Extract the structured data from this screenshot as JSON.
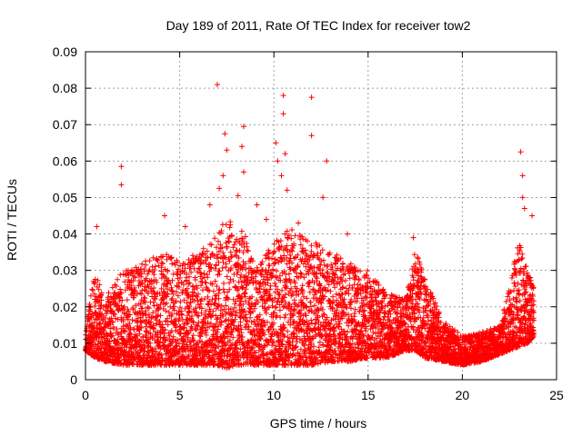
{
  "chart_data": {
    "type": "scatter",
    "title": "Day 189 of 2011, Rate Of TEC Index for receiver tow2",
    "xlabel": "GPS time / hours",
    "ylabel": "ROTI / TECUs",
    "xlim": [
      0,
      25
    ],
    "ylim": [
      0,
      0.09
    ],
    "x_ticks": [
      0,
      5,
      10,
      15,
      20,
      25
    ],
    "y_ticks": [
      0,
      0.01,
      0.02,
      0.03,
      0.04,
      0.05,
      0.06,
      0.07,
      0.08,
      0.09
    ],
    "grid": true,
    "marker": "plus",
    "series_color": "#ff0000",
    "envelope": {
      "x": [
        0,
        0.5,
        1,
        2,
        3,
        4,
        5,
        6,
        7,
        7.5,
        8,
        8.5,
        9,
        10,
        10.5,
        11,
        12,
        13,
        14,
        15,
        16,
        17,
        17.5,
        18,
        19,
        20,
        21,
        22,
        22.5,
        23,
        23.5,
        23.8
      ],
      "low": [
        0.008,
        0.006,
        0.005,
        0.004,
        0.004,
        0.004,
        0.004,
        0.004,
        0.004,
        0.003,
        0.004,
        0.004,
        0.004,
        0.004,
        0.004,
        0.004,
        0.004,
        0.005,
        0.005,
        0.006,
        0.006,
        0.008,
        0.008,
        0.006,
        0.005,
        0.004,
        0.005,
        0.007,
        0.008,
        0.009,
        0.01,
        0.012
      ],
      "high": [
        0.014,
        0.03,
        0.022,
        0.03,
        0.032,
        0.035,
        0.033,
        0.036,
        0.04,
        0.045,
        0.042,
        0.04,
        0.03,
        0.038,
        0.04,
        0.042,
        0.038,
        0.036,
        0.032,
        0.03,
        0.024,
        0.022,
        0.036,
        0.028,
        0.016,
        0.012,
        0.013,
        0.015,
        0.025,
        0.04,
        0.03,
        0.026
      ]
    },
    "outliers": [
      {
        "x": 0.6,
        "y": 0.042
      },
      {
        "x": 1.9,
        "y": 0.0585
      },
      {
        "x": 1.9,
        "y": 0.0535
      },
      {
        "x": 4.2,
        "y": 0.045
      },
      {
        "x": 6.6,
        "y": 0.048
      },
      {
        "x": 7.0,
        "y": 0.081
      },
      {
        "x": 7.1,
        "y": 0.0525
      },
      {
        "x": 7.4,
        "y": 0.0675
      },
      {
        "x": 7.5,
        "y": 0.063
      },
      {
        "x": 7.3,
        "y": 0.056
      },
      {
        "x": 8.1,
        "y": 0.0505
      },
      {
        "x": 8.4,
        "y": 0.0695
      },
      {
        "x": 8.3,
        "y": 0.064
      },
      {
        "x": 8.4,
        "y": 0.057
      },
      {
        "x": 9.1,
        "y": 0.048
      },
      {
        "x": 10.1,
        "y": 0.065
      },
      {
        "x": 10.2,
        "y": 0.06
      },
      {
        "x": 10.4,
        "y": 0.056
      },
      {
        "x": 10.5,
        "y": 0.078
      },
      {
        "x": 10.5,
        "y": 0.073
      },
      {
        "x": 10.6,
        "y": 0.062
      },
      {
        "x": 10.7,
        "y": 0.052
      },
      {
        "x": 12.0,
        "y": 0.0775
      },
      {
        "x": 12.0,
        "y": 0.067
      },
      {
        "x": 12.8,
        "y": 0.06
      },
      {
        "x": 12.6,
        "y": 0.05
      },
      {
        "x": 13.9,
        "y": 0.04
      },
      {
        "x": 23.1,
        "y": 0.0625
      },
      {
        "x": 23.2,
        "y": 0.056
      },
      {
        "x": 23.2,
        "y": 0.05
      },
      {
        "x": 23.3,
        "y": 0.047
      },
      {
        "x": 23.7,
        "y": 0.045
      },
      {
        "x": 5.3,
        "y": 0.042
      },
      {
        "x": 9.6,
        "y": 0.044
      },
      {
        "x": 11.3,
        "y": 0.043
      },
      {
        "x": 17.4,
        "y": 0.039
      }
    ]
  }
}
